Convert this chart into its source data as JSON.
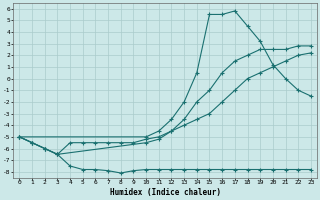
{
  "title": "",
  "xlabel": "Humidex (Indice chaleur)",
  "xlim": [
    -0.5,
    23.5
  ],
  "ylim": [
    -8.5,
    6.5
  ],
  "xticks": [
    0,
    1,
    2,
    3,
    4,
    5,
    6,
    7,
    8,
    9,
    10,
    11,
    12,
    13,
    14,
    15,
    16,
    17,
    18,
    19,
    20,
    21,
    22,
    23
  ],
  "yticks": [
    6,
    5,
    4,
    3,
    2,
    1,
    0,
    -1,
    -2,
    -3,
    -4,
    -5,
    -6,
    -7,
    -8
  ],
  "background_color": "#cce8e8",
  "grid_color": "#aacccc",
  "line_color": "#1a7070",
  "line1_x": [
    0,
    1,
    2,
    3,
    4,
    5,
    6,
    7,
    8,
    9,
    10,
    11,
    12,
    13,
    14,
    15,
    16,
    17,
    18,
    19,
    20,
    21,
    22,
    23
  ],
  "line1_y": [
    -5.0,
    -5.5,
    -6.0,
    -6.5,
    -7.5,
    -7.8,
    -7.8,
    -7.9,
    -8.1,
    -7.9,
    -7.8,
    -7.8,
    -7.8,
    -7.8,
    -7.8,
    -7.8,
    -7.8,
    -7.8,
    -7.8,
    -7.8,
    -7.8,
    -7.8,
    -7.8,
    -7.8
  ],
  "line2_x": [
    0,
    1,
    2,
    3,
    4,
    5,
    6,
    7,
    8,
    9,
    10,
    11,
    12,
    13,
    14,
    15,
    16,
    17,
    18,
    19,
    20,
    21,
    22,
    23
  ],
  "line2_y": [
    -5.0,
    -5.5,
    -6.0,
    -6.5,
    -5.5,
    -5.5,
    -5.5,
    -5.5,
    -5.5,
    -5.5,
    -5.2,
    -5.0,
    -4.5,
    -4.0,
    -3.5,
    -3.0,
    -2.0,
    -1.0,
    0.0,
    0.5,
    1.0,
    1.5,
    2.0,
    2.2
  ],
  "line3_x": [
    0,
    1,
    2,
    3,
    10,
    11,
    12,
    13,
    14,
    15,
    16,
    17,
    18,
    19,
    20,
    21,
    22,
    23
  ],
  "line3_y": [
    -5.0,
    -5.5,
    -6.0,
    -6.5,
    -5.5,
    -5.2,
    -4.5,
    -3.5,
    -2.0,
    -1.0,
    0.5,
    1.5,
    2.0,
    2.5,
    2.5,
    2.5,
    2.8,
    2.8
  ],
  "line4_x": [
    0,
    10,
    11,
    12,
    13,
    14,
    15,
    16,
    17,
    18,
    19,
    20,
    21,
    22,
    23
  ],
  "line4_y": [
    -5.0,
    -5.0,
    -4.5,
    -3.5,
    -2.0,
    0.5,
    5.5,
    5.5,
    5.8,
    4.5,
    3.2,
    1.2,
    0.0,
    -1.0,
    -1.5
  ]
}
